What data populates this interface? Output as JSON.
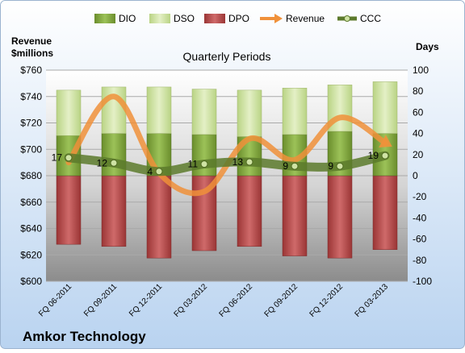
{
  "chart_data": {
    "type": "bar",
    "title": "Quarterly Periods",
    "company": "Amkor Technology",
    "left_axis_label_line1": "Revenue",
    "left_axis_label_line2": "$millions",
    "right_axis_label": "Days",
    "left_ylim": [
      600,
      760
    ],
    "left_ticks": [
      "$600",
      "$620",
      "$640",
      "$660",
      "$680",
      "$700",
      "$720",
      "$740",
      "$760"
    ],
    "right_ylim": [
      -100,
      100
    ],
    "right_ticks": [
      "-100",
      "-80",
      "-60",
      "-40",
      "-20",
      "0",
      "20",
      "40",
      "60",
      "80",
      "100"
    ],
    "categories": [
      "FQ 06-2011",
      "FQ 09-2011",
      "FQ 12-2011",
      "FQ 03-2012",
      "FQ 06-2012",
      "FQ 09-2012",
      "FQ 12-2012",
      "FQ 03-2013"
    ],
    "legend": {
      "dio": "DIO",
      "dso": "DSO",
      "dpo": "DPO",
      "revenue": "Revenue",
      "ccc": "CCC"
    },
    "colors": {
      "dio": "#7ea33a",
      "dso": "#cfe3a4",
      "dpo": "#b94a4a",
      "revenue": "#f0913a",
      "ccc": "#5c7a2c"
    },
    "series": {
      "dio": [
        38,
        40,
        40,
        39,
        37,
        39,
        42,
        40
      ],
      "dso": [
        43,
        44,
        44,
        43,
        44,
        44,
        44,
        49
      ],
      "dpo": [
        -65,
        -67,
        -78,
        -71,
        -67,
        -76,
        -78,
        -70
      ],
      "revenue": [
        690,
        740,
        682,
        668,
        708,
        692,
        724,
        705
      ],
      "ccc": [
        17,
        12,
        4,
        11,
        13,
        9,
        9,
        19
      ]
    },
    "ccc_labels": [
      "17",
      "12",
      "4",
      "11",
      "13",
      "9",
      "9",
      "19"
    ]
  }
}
